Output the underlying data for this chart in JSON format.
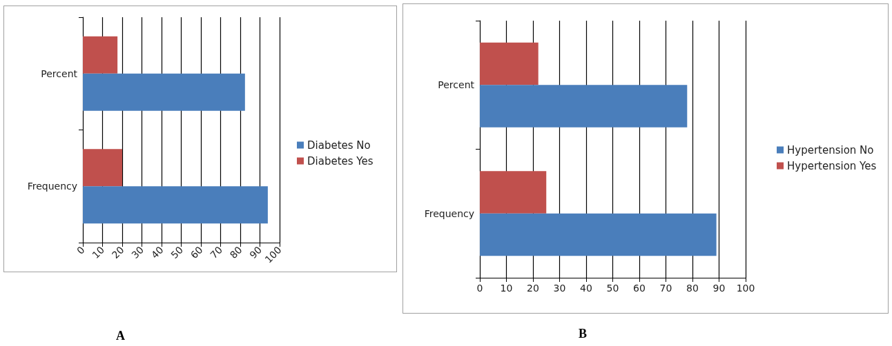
{
  "chart_data": [
    {
      "type": "bar",
      "orientation": "horizontal",
      "categories": [
        "Percent",
        "Frequency"
      ],
      "series": [
        {
          "name": "Diabetes No",
          "color": "#4a7ebb",
          "values": [
            82.4,
            94
          ]
        },
        {
          "name": "Diabetes Yes",
          "color": "#c0504d",
          "values": [
            17.6,
            20
          ]
        }
      ],
      "xlim": [
        0,
        100
      ],
      "xticks": [
        0,
        10,
        20,
        30,
        40,
        50,
        60,
        70,
        80,
        90,
        100
      ],
      "grid": "x",
      "legend": "right",
      "annotations": [
        "A"
      ]
    },
    {
      "type": "bar",
      "orientation": "horizontal",
      "categories": [
        "Percent",
        "Frequency"
      ],
      "series": [
        {
          "name": "Hypertension No",
          "color": "#4a7ebb",
          "values": [
            78,
            89
          ]
        },
        {
          "name": "Hypertension Yes",
          "color": "#c0504d",
          "values": [
            22,
            25
          ]
        }
      ],
      "xlim": [
        0,
        100
      ],
      "xticks": [
        0,
        10,
        20,
        30,
        40,
        50,
        60,
        70,
        80,
        90,
        100
      ],
      "grid": "x",
      "legend": "right",
      "annotations": [
        "B"
      ]
    }
  ]
}
